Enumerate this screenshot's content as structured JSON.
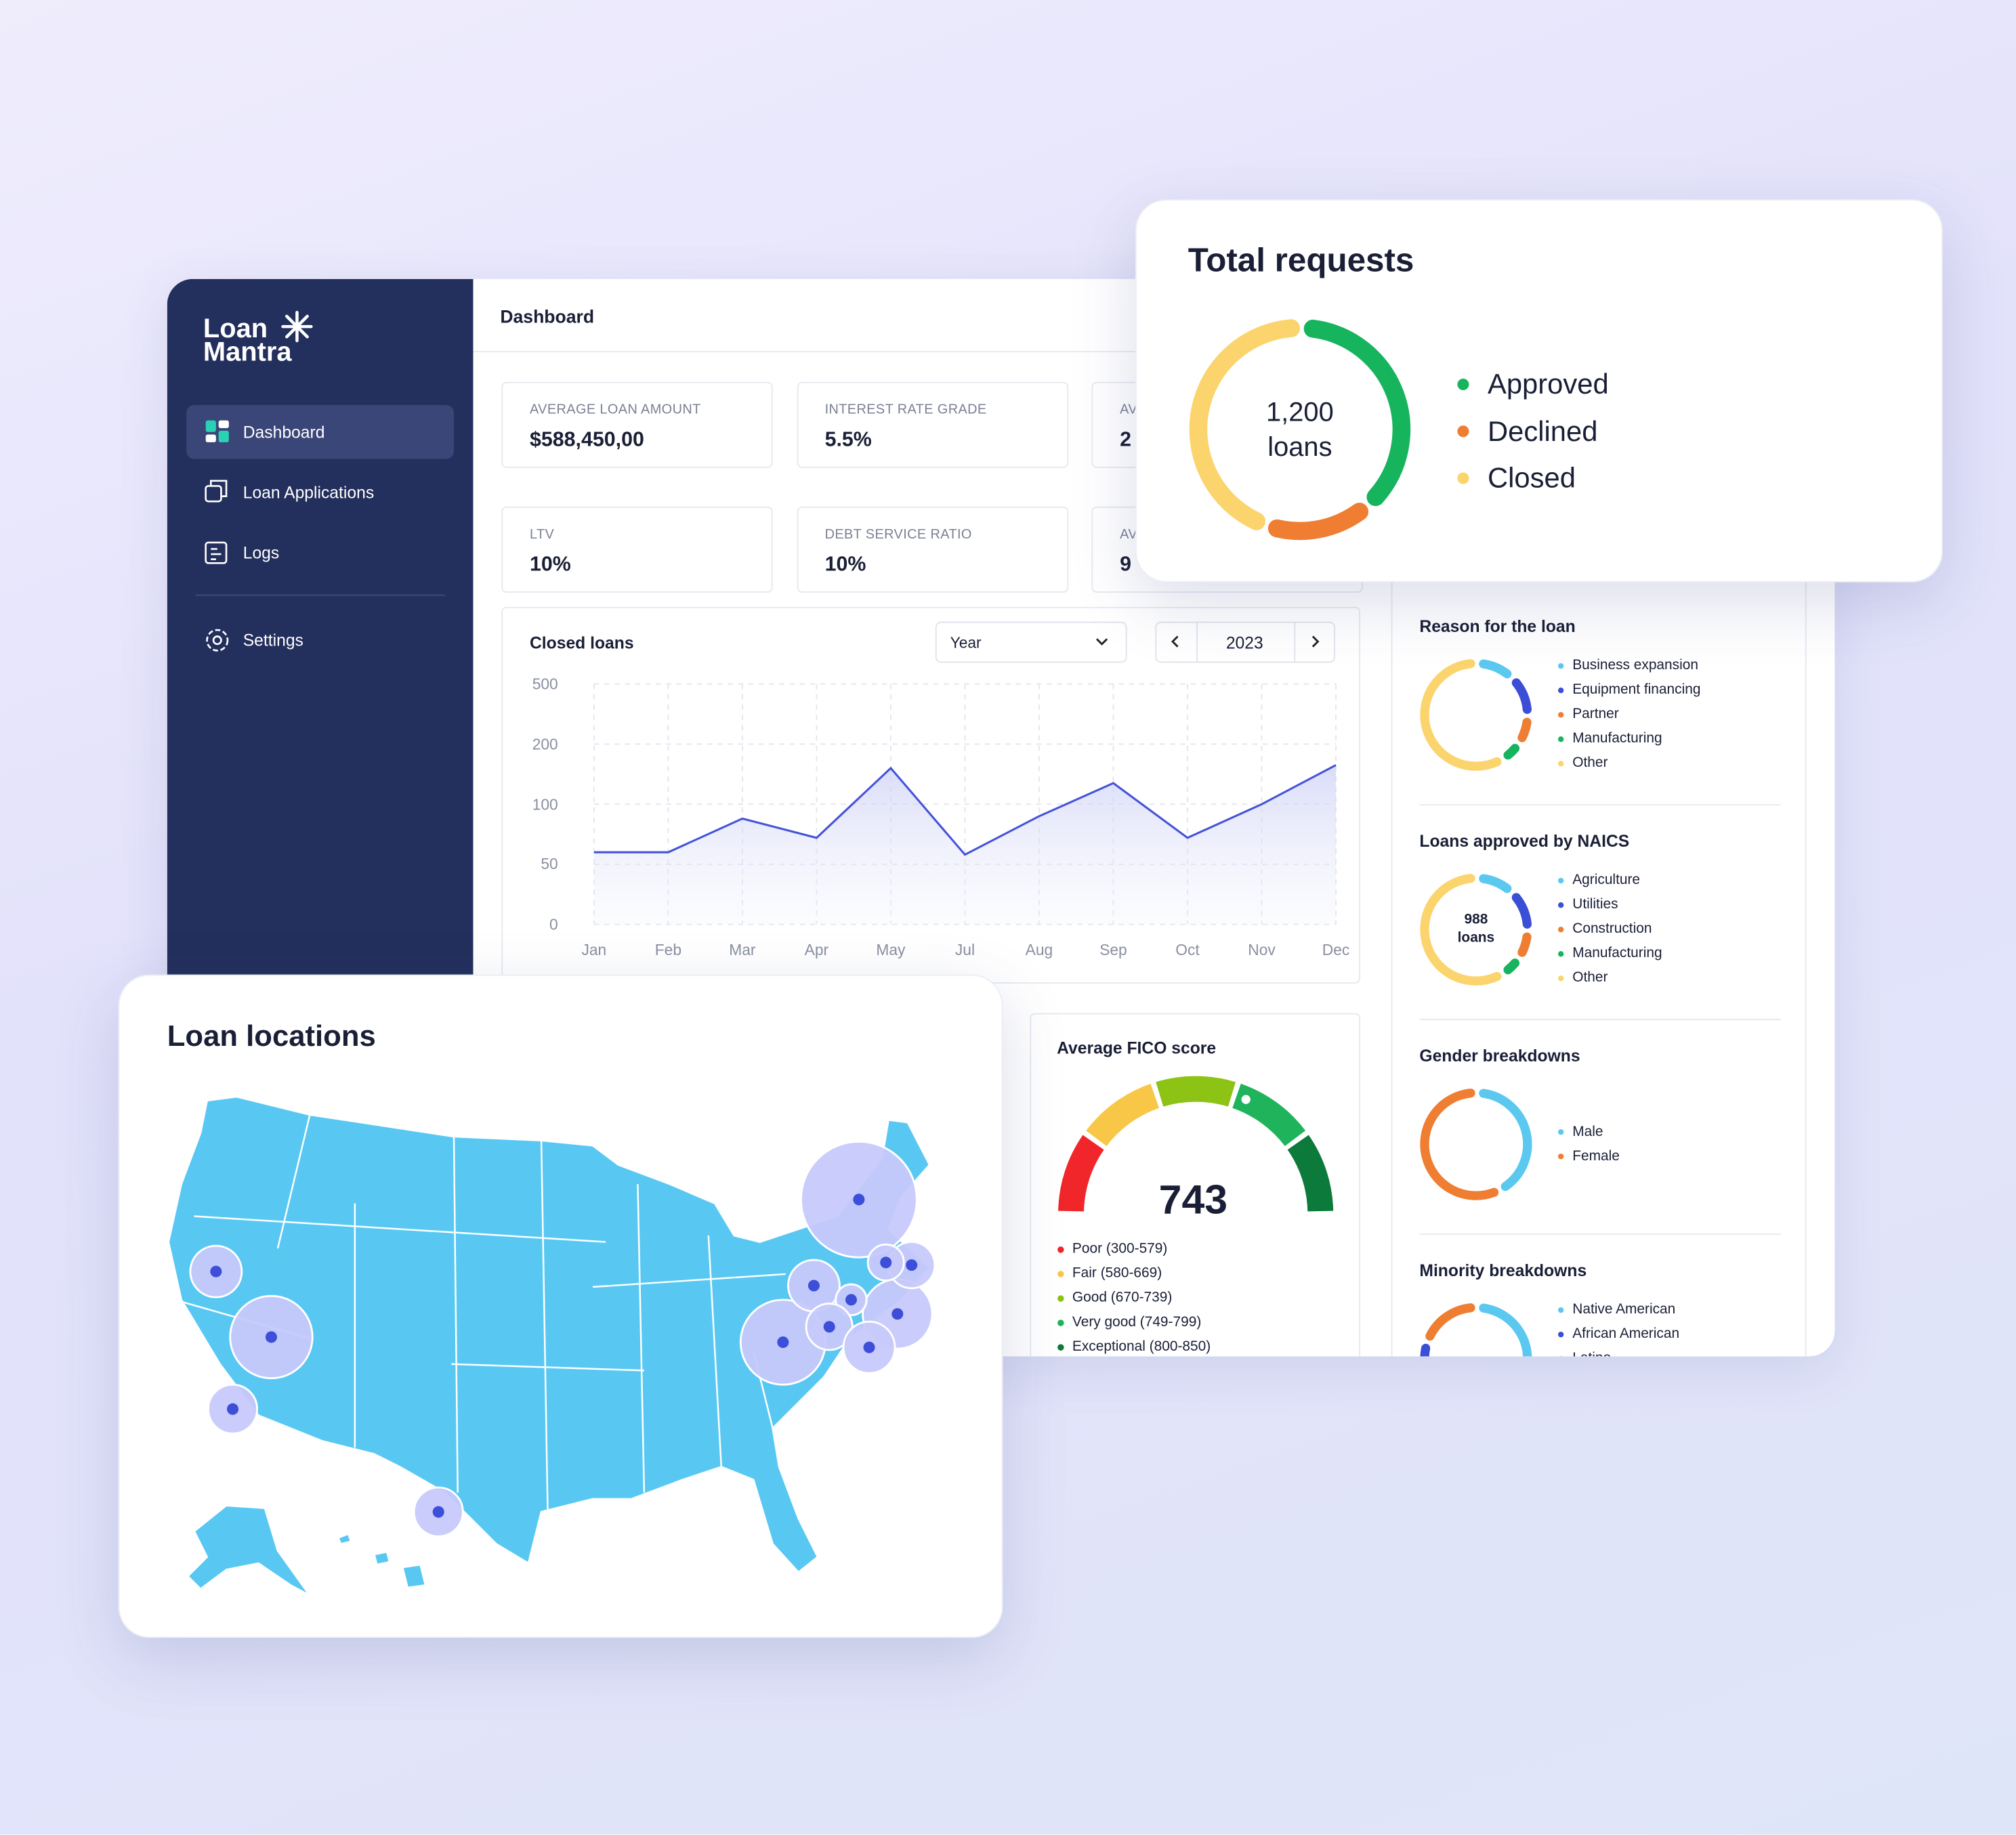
{
  "sidebar": {
    "logo": [
      "Loan",
      "Mantra"
    ],
    "nav": [
      "Dashboard",
      "Loan Applications",
      "Logs"
    ],
    "settings": "Settings"
  },
  "header": {
    "title": "Dashboard"
  },
  "kpis": [
    {
      "label": "AVERAGE LOAN AMOUNT",
      "value": "$588,450,00"
    },
    {
      "label": "INTEREST RATE GRADE",
      "value": "5.5%"
    },
    {
      "label": "AV",
      "value": "2"
    },
    {
      "label": "LTV",
      "value": "10%"
    },
    {
      "label": "DEBT SERVICE RATIO",
      "value": "10%"
    },
    {
      "label": "AV",
      "value": "9"
    }
  ],
  "closed_loans": {
    "type": "line",
    "title": "Closed loans",
    "filter": "Year",
    "year": "2023",
    "color": "#4453d8",
    "categories": [
      "Jan",
      "Feb",
      "Mar",
      "Apr",
      "May",
      "Jul",
      "Aug",
      "Sep",
      "Oct",
      "Nov",
      "Dec"
    ],
    "values": [
      60,
      60,
      88,
      72,
      160,
      58,
      90,
      135,
      72,
      100,
      165
    ],
    "ylim": [
      0,
      500
    ],
    "yticks": [
      0,
      50,
      100,
      200,
      500
    ],
    "grid": true
  },
  "total_requests": {
    "type": "donut",
    "title": "Total requests",
    "center": [
      "1,200",
      "loans"
    ],
    "series": [
      {
        "name": "Approved",
        "color": "#17b45e",
        "value": 38
      },
      {
        "name": "Declined",
        "color": "#ef7d32",
        "value": 17
      },
      {
        "name": "Closed",
        "color": "#fbd46d",
        "value": 45
      }
    ]
  },
  "fico": {
    "title": "Average FICO score",
    "value": "743",
    "legend": [
      {
        "name": "Poor (300-579)",
        "color": "#f0262b"
      },
      {
        "name": "Fair (580-669)",
        "color": "#f8c748"
      },
      {
        "name": "Good (670-739)",
        "color": "#8cc315"
      },
      {
        "name": "Very good (749-799)",
        "color": "#1fb45c"
      },
      {
        "name": "Exceptional (800-850)",
        "color": "#0b7a3b"
      }
    ]
  },
  "breakdowns": [
    {
      "type": "donut",
      "title": "Reason for the loan",
      "series": [
        {
          "name": "Business expansion",
          "color": "#5bc8f0",
          "value": 12
        },
        {
          "name": "Equipment financing",
          "color": "#3b4fd6",
          "value": 13
        },
        {
          "name": "Partner",
          "color": "#ef7d32",
          "value": 9
        },
        {
          "name": "Manufacturing",
          "color": "#17b45e",
          "value": 7
        },
        {
          "name": "Other",
          "color": "#fbd46d",
          "value": 59
        }
      ]
    },
    {
      "type": "donut",
      "title": "Loans approved by NAICS",
      "center": [
        "988",
        "loans"
      ],
      "series": [
        {
          "name": "Agriculture",
          "color": "#5bc8f0",
          "value": 12
        },
        {
          "name": "Utilities",
          "color": "#3b4fd6",
          "value": 13
        },
        {
          "name": "Construction",
          "color": "#ef7d32",
          "value": 9
        },
        {
          "name": "Manufacturing",
          "color": "#17b45e",
          "value": 7
        },
        {
          "name": "Other",
          "color": "#fbd46d",
          "value": 59
        }
      ]
    },
    {
      "type": "donut",
      "title": "Gender breakdowns",
      "series": [
        {
          "name": "Male",
          "color": "#5bc8f0",
          "value": 42
        },
        {
          "name": "Female",
          "color": "#ef7d32",
          "value": 58
        }
      ]
    },
    {
      "type": "donut",
      "title": "Minority breakdowns",
      "series": [
        {
          "name": "Native American",
          "color": "#5bc8f0",
          "value": 30
        },
        {
          "name": "African American",
          "color": "#3b4fd6",
          "value": 10
        },
        {
          "name": "Latino",
          "color": "#ef7d32",
          "value": 10
        }
      ]
    }
  ],
  "map": {
    "title": "Loan locations"
  }
}
